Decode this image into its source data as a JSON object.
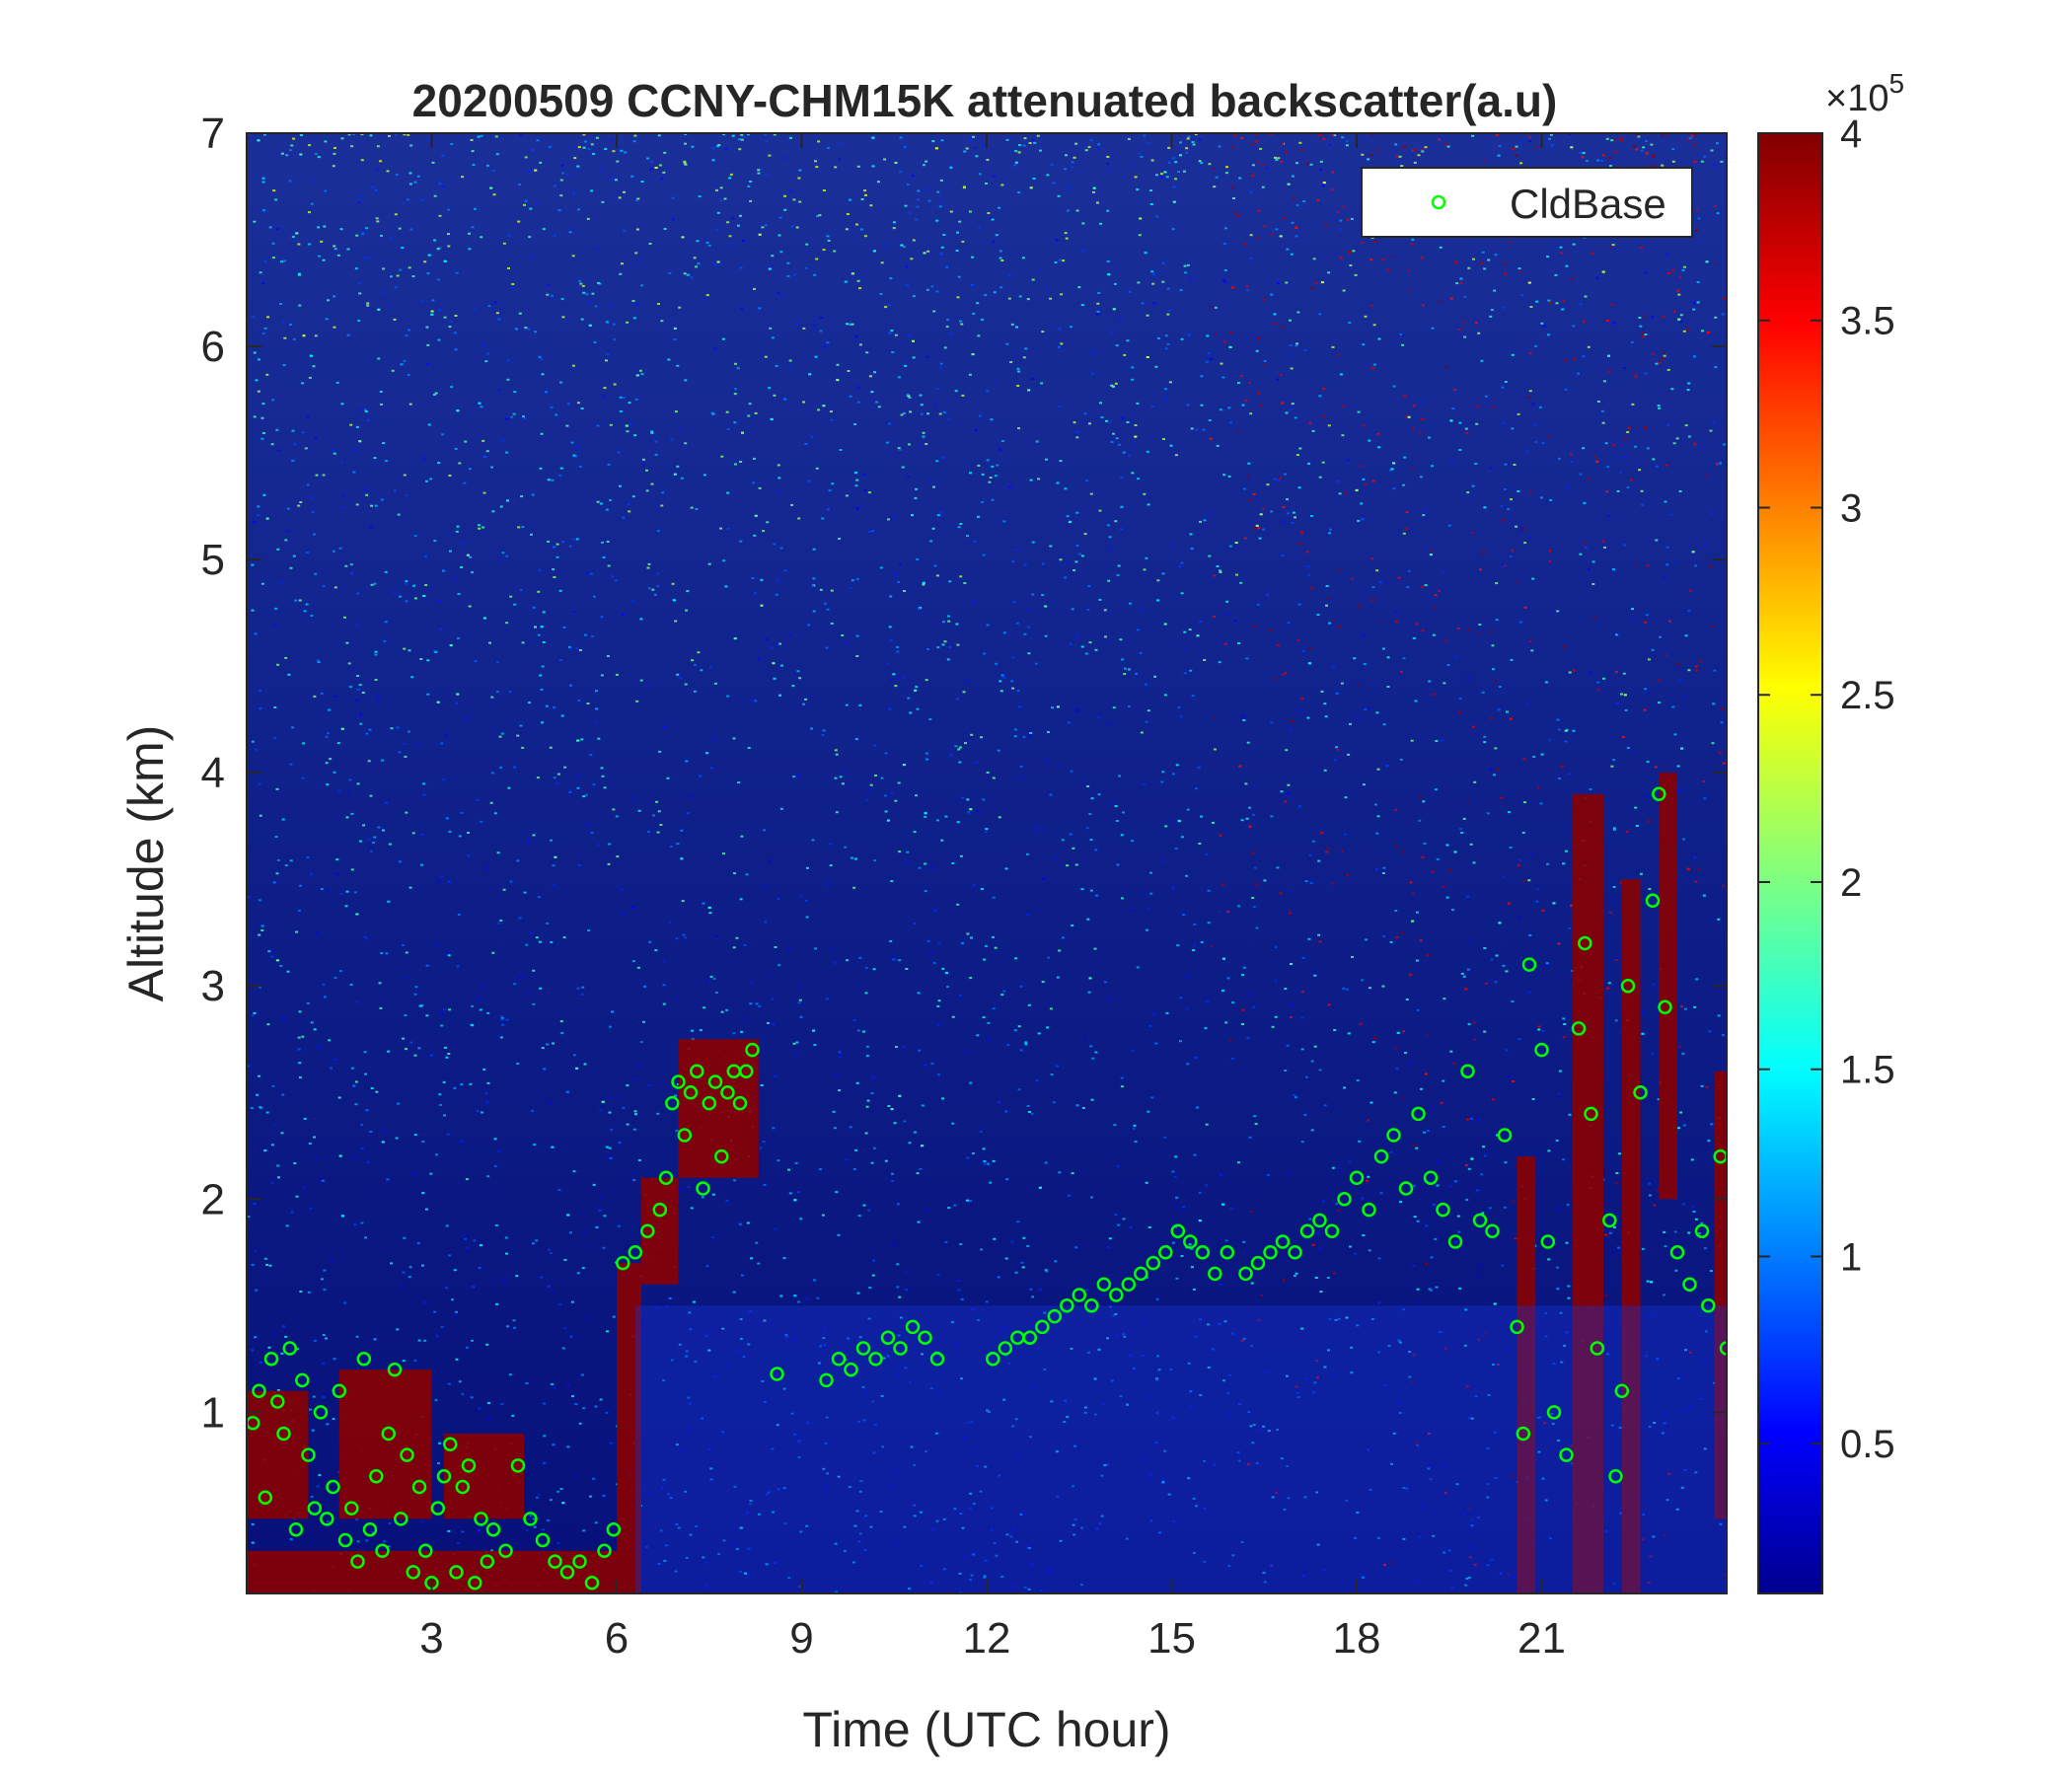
{
  "chart_data": {
    "type": "heatmap",
    "title": "20200509 CCNY-CHM15K attenuated backscatter(a.u)",
    "xlabel": "Time (UTC hour)",
    "ylabel": "Altitude (km)",
    "xlim": [
      0,
      24
    ],
    "ylim": [
      0.15,
      7
    ],
    "x_ticks": [
      3,
      6,
      9,
      12,
      15,
      18,
      21
    ],
    "y_ticks": [
      1,
      2,
      3,
      4,
      5,
      6,
      7
    ],
    "colorbar": {
      "min": 10000,
      "max": 400000,
      "ticks": [
        0.5,
        1,
        1.5,
        2,
        2.5,
        3,
        3.5,
        4
      ],
      "tick_labels": [
        "0.5",
        "1",
        "1.5",
        "2",
        "2.5",
        "3",
        "3.5",
        "4"
      ],
      "exponent_label": "×10",
      "exponent_power": "5",
      "colormap": "jet"
    },
    "legend": {
      "entries": [
        "CldBase"
      ],
      "position": "top-right"
    },
    "series": [
      {
        "name": "CldBase",
        "marker": "circle",
        "color": "#00ff00",
        "points": [
          [
            0.1,
            0.95
          ],
          [
            0.2,
            1.1
          ],
          [
            0.3,
            0.6
          ],
          [
            0.4,
            1.25
          ],
          [
            0.5,
            1.05
          ],
          [
            0.6,
            0.9
          ],
          [
            0.7,
            1.3
          ],
          [
            0.8,
            0.45
          ],
          [
            0.9,
            1.15
          ],
          [
            1.0,
            0.8
          ],
          [
            1.1,
            0.55
          ],
          [
            1.2,
            1.0
          ],
          [
            1.3,
            0.5
          ],
          [
            1.4,
            0.65
          ],
          [
            1.5,
            1.1
          ],
          [
            1.6,
            0.4
          ],
          [
            1.7,
            0.55
          ],
          [
            1.8,
            0.3
          ],
          [
            1.9,
            1.25
          ],
          [
            2.0,
            0.45
          ],
          [
            2.1,
            0.7
          ],
          [
            2.2,
            0.35
          ],
          [
            2.3,
            0.9
          ],
          [
            2.4,
            1.2
          ],
          [
            2.5,
            0.5
          ],
          [
            2.6,
            0.8
          ],
          [
            2.7,
            0.25
          ],
          [
            2.8,
            0.65
          ],
          [
            2.9,
            0.35
          ],
          [
            3.0,
            0.2
          ],
          [
            3.1,
            0.55
          ],
          [
            3.2,
            0.7
          ],
          [
            3.3,
            0.85
          ],
          [
            3.4,
            0.25
          ],
          [
            3.5,
            0.65
          ],
          [
            3.6,
            0.75
          ],
          [
            3.7,
            0.2
          ],
          [
            3.8,
            0.5
          ],
          [
            3.9,
            0.3
          ],
          [
            4.0,
            0.45
          ],
          [
            4.2,
            0.35
          ],
          [
            4.4,
            0.75
          ],
          [
            4.6,
            0.5
          ],
          [
            4.8,
            0.4
          ],
          [
            5.0,
            0.3
          ],
          [
            5.2,
            0.25
          ],
          [
            5.4,
            0.3
          ],
          [
            5.6,
            0.2
          ],
          [
            5.8,
            0.35
          ],
          [
            5.95,
            0.45
          ],
          [
            6.1,
            1.7
          ],
          [
            6.3,
            1.75
          ],
          [
            6.5,
            1.85
          ],
          [
            6.7,
            1.95
          ],
          [
            6.8,
            2.1
          ],
          [
            6.9,
            2.45
          ],
          [
            7.0,
            2.55
          ],
          [
            7.1,
            2.3
          ],
          [
            7.2,
            2.5
          ],
          [
            7.3,
            2.6
          ],
          [
            7.4,
            2.05
          ],
          [
            7.5,
            2.45
          ],
          [
            7.6,
            2.55
          ],
          [
            7.7,
            2.2
          ],
          [
            7.8,
            2.5
          ],
          [
            7.9,
            2.6
          ],
          [
            8.0,
            2.45
          ],
          [
            8.1,
            2.6
          ],
          [
            8.2,
            2.7
          ],
          [
            8.6,
            1.18
          ],
          [
            9.4,
            1.15
          ],
          [
            9.6,
            1.25
          ],
          [
            9.8,
            1.2
          ],
          [
            10.0,
            1.3
          ],
          [
            10.2,
            1.25
          ],
          [
            10.4,
            1.35
          ],
          [
            10.6,
            1.3
          ],
          [
            10.8,
            1.4
          ],
          [
            11.0,
            1.35
          ],
          [
            11.2,
            1.25
          ],
          [
            12.1,
            1.25
          ],
          [
            12.3,
            1.3
          ],
          [
            12.5,
            1.35
          ],
          [
            12.7,
            1.35
          ],
          [
            12.9,
            1.4
          ],
          [
            13.1,
            1.45
          ],
          [
            13.3,
            1.5
          ],
          [
            13.5,
            1.55
          ],
          [
            13.7,
            1.5
          ],
          [
            13.9,
            1.6
          ],
          [
            14.1,
            1.55
          ],
          [
            14.3,
            1.6
          ],
          [
            14.5,
            1.65
          ],
          [
            14.7,
            1.7
          ],
          [
            14.9,
            1.75
          ],
          [
            15.1,
            1.85
          ],
          [
            15.3,
            1.8
          ],
          [
            15.5,
            1.75
          ],
          [
            15.7,
            1.65
          ],
          [
            15.9,
            1.75
          ],
          [
            16.2,
            1.65
          ],
          [
            16.4,
            1.7
          ],
          [
            16.6,
            1.75
          ],
          [
            16.8,
            1.8
          ],
          [
            17.0,
            1.75
          ],
          [
            17.2,
            1.85
          ],
          [
            17.4,
            1.9
          ],
          [
            17.6,
            1.85
          ],
          [
            17.8,
            2.0
          ],
          [
            18.0,
            2.1
          ],
          [
            18.2,
            1.95
          ],
          [
            18.4,
            2.2
          ],
          [
            18.6,
            2.3
          ],
          [
            18.8,
            2.05
          ],
          [
            19.0,
            2.4
          ],
          [
            19.2,
            2.1
          ],
          [
            19.4,
            1.95
          ],
          [
            19.6,
            1.8
          ],
          [
            19.8,
            2.6
          ],
          [
            20.0,
            1.9
          ],
          [
            20.2,
            1.85
          ],
          [
            20.4,
            2.3
          ],
          [
            20.6,
            1.4
          ],
          [
            20.7,
            0.9
          ],
          [
            20.8,
            3.1
          ],
          [
            21.0,
            2.7
          ],
          [
            21.1,
            1.8
          ],
          [
            21.2,
            1.0
          ],
          [
            21.4,
            0.8
          ],
          [
            21.6,
            2.8
          ],
          [
            21.7,
            3.2
          ],
          [
            21.8,
            2.4
          ],
          [
            21.9,
            1.3
          ],
          [
            22.1,
            1.9
          ],
          [
            22.2,
            0.7
          ],
          [
            22.3,
            1.1
          ],
          [
            22.4,
            3.0
          ],
          [
            22.6,
            2.5
          ],
          [
            22.8,
            3.4
          ],
          [
            22.9,
            3.9
          ],
          [
            23.0,
            2.9
          ],
          [
            23.2,
            1.75
          ],
          [
            23.4,
            1.6
          ],
          [
            23.6,
            1.85
          ],
          [
            23.7,
            1.5
          ],
          [
            23.9,
            2.2
          ],
          [
            24.0,
            1.3
          ]
        ]
      }
    ]
  }
}
